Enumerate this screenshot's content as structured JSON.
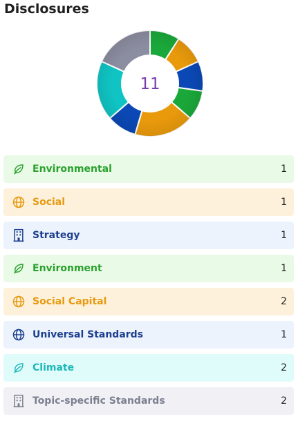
{
  "header": {
    "title": "Disclosures"
  },
  "summary": {
    "total": "11"
  },
  "categories": [
    {
      "label": "Environmental",
      "count": "1",
      "icon": "leaf-icon",
      "text_color": "#2aa12e",
      "bg_color": "#e9fbe6",
      "icon_color": "#2aa12e"
    },
    {
      "label": "Social",
      "count": "1",
      "icon": "globe-icon",
      "text_color": "#e79a10",
      "bg_color": "#fdf1dc",
      "icon_color": "#e79a10"
    },
    {
      "label": "Strategy",
      "count": "1",
      "icon": "building-icon",
      "text_color": "#1e3f8f",
      "bg_color": "#ecf3fd",
      "icon_color": "#1e3f8f"
    },
    {
      "label": "Environment",
      "count": "1",
      "icon": "leaf-icon",
      "text_color": "#2aa12e",
      "bg_color": "#e9fbe6",
      "icon_color": "#2aa12e"
    },
    {
      "label": "Social Capital",
      "count": "2",
      "icon": "globe-icon",
      "text_color": "#e79a10",
      "bg_color": "#fdf1dc",
      "icon_color": "#e79a10"
    },
    {
      "label": "Universal Standards",
      "count": "1",
      "icon": "globe-icon",
      "text_color": "#1e3f8f",
      "bg_color": "#ecf3fd",
      "icon_color": "#1e3f8f"
    },
    {
      "label": "Climate",
      "count": "2",
      "icon": "leaf-icon",
      "text_color": "#1fb8b8",
      "bg_color": "#dffcfb",
      "icon_color": "#1fb8b8"
    },
    {
      "label": "Topic-specific Standards",
      "count": "2",
      "icon": "building-icon",
      "text_color": "#7c7f90",
      "bg_color": "#f1f1f5",
      "icon_color": "#7c7f90"
    }
  ],
  "chart_data": {
    "type": "pie",
    "donut": true,
    "center_value": "11",
    "categories": [
      "Environmental",
      "Social",
      "Strategy",
      "Environment",
      "Social Capital",
      "Universal Standards",
      "Climate",
      "Topic-specific Standards"
    ],
    "values": [
      1,
      1,
      1,
      1,
      2,
      1,
      2,
      2
    ],
    "colors": [
      "#1ba83a",
      "#e99a0c",
      "#0b48b5",
      "#1ba83a",
      "#e99a0c",
      "#0b48b5",
      "#10c4c4",
      "#8b8da0"
    ]
  }
}
